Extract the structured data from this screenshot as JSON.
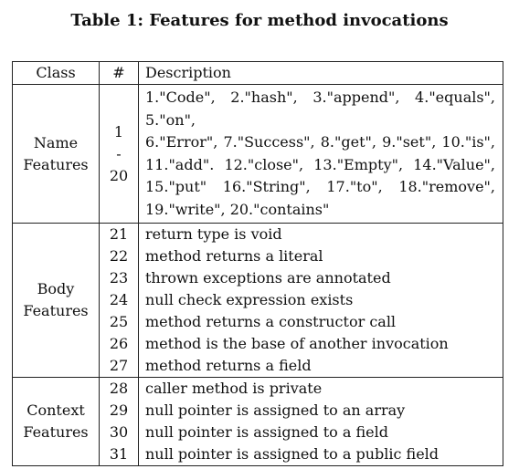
{
  "caption": "Table 1: Features for method invocations",
  "headers": {
    "class": "Class",
    "num": "#",
    "desc": "Description"
  },
  "name_group": {
    "class_line1": "Name",
    "class_line2": "Features",
    "range_start": "1",
    "range_dash": "-",
    "range_end": "20",
    "description_lines": [
      "1.\"Code\", 2.\"hash\", 3.\"append\", 4.\"equals\", 5.\"on\",",
      "6.\"Error\", 7.\"Success\", 8.\"get\", 9.\"set\", 10.\"is\",",
      "11.\"add\". 12.\"close\", 13.\"Empty\", 14.\"Value\",",
      "15.\"put\" 16.\"String\", 17.\"to\", 18.\"remove\",",
      "19.\"write\", 20.\"contains\""
    ]
  },
  "body_group": {
    "class_line1": "Body",
    "class_line2": "Features",
    "rows": [
      {
        "num": "21",
        "desc": "return type is void"
      },
      {
        "num": "22",
        "desc": "method returns a literal"
      },
      {
        "num": "23",
        "desc": "thrown exceptions are annotated"
      },
      {
        "num": "24",
        "desc": "null check expression exists"
      },
      {
        "num": "25",
        "desc": "method returns a constructor call"
      },
      {
        "num": "26",
        "desc": "method is the base of another invocation"
      },
      {
        "num": "27",
        "desc": "method returns a field"
      }
    ]
  },
  "context_group": {
    "class_line1": "Context",
    "class_line2": "Features",
    "rows": [
      {
        "num": "28",
        "desc": "caller method is private"
      },
      {
        "num": "29",
        "desc": "null pointer is assigned to an array"
      },
      {
        "num": "30",
        "desc": "null pointer is assigned to a field"
      },
      {
        "num": "31",
        "desc": "null pointer is assigned to a public field"
      }
    ]
  }
}
